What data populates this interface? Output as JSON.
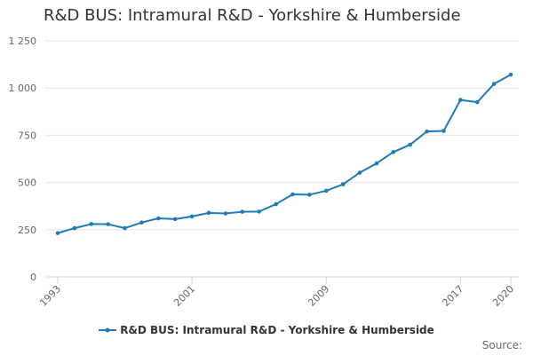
{
  "chart_data": {
    "type": "line",
    "title": "R&D BUS: Intramural R&D - Yorkshire & Humberside",
    "xlabel": "",
    "ylabel": "",
    "x": [
      1993,
      1994,
      1995,
      1996,
      1997,
      1998,
      1999,
      2000,
      2001,
      2002,
      2003,
      2004,
      2005,
      2006,
      2007,
      2008,
      2009,
      2010,
      2011,
      2012,
      2013,
      2014,
      2015,
      2016,
      2017,
      2018,
      2019,
      2020
    ],
    "x_tick_labels": [
      "1993",
      "2001",
      "2009",
      "2017",
      "2020"
    ],
    "x_ticks": [
      1993,
      2001,
      2009,
      2017,
      2020
    ],
    "y_tick_labels": [
      "0",
      "250",
      "500",
      "750",
      "1 000",
      "1 250"
    ],
    "y_ticks": [
      0,
      250,
      500,
      750,
      1000,
      1250
    ],
    "ylim": [
      0,
      1250
    ],
    "xlim": [
      1993,
      2020
    ],
    "grid": true,
    "legend_position": "bottom",
    "series": [
      {
        "name": "R&D BUS: Intramural R&D - Yorkshire & Humberside",
        "color": "#1f7bb8",
        "values": [
          232,
          258,
          280,
          279,
          258,
          288,
          310,
          306,
          320,
          339,
          336,
          345,
          346,
          385,
          437,
          435,
          456,
          490,
          552,
          601,
          661,
          700,
          770,
          773,
          937,
          925,
          1022,
          1071
        ]
      }
    ]
  },
  "source_label": "Source:"
}
